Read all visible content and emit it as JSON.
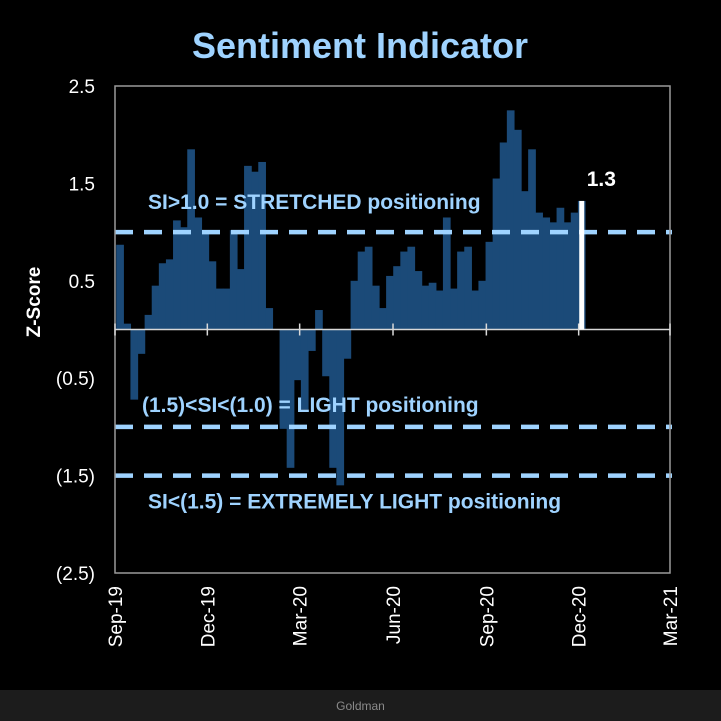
{
  "chart_data": {
    "type": "bar",
    "title": "Sentiment Indicator",
    "ylabel": "Z-Score",
    "xlabel": "",
    "ylim": [
      -2.5,
      2.5
    ],
    "yticks": [
      {
        "value": 2.5,
        "label": "2.5"
      },
      {
        "value": 1.5,
        "label": "1.5"
      },
      {
        "value": 0.5,
        "label": "0.5"
      },
      {
        "value": -0.5,
        "label": "(0.5)"
      },
      {
        "value": -1.5,
        "label": "(1.5)"
      },
      {
        "value": -2.5,
        "label": "(2.5)"
      }
    ],
    "xlim": [
      "2019-09-01",
      "2021-03-01"
    ],
    "xticks": [
      {
        "date": "2019-09-01",
        "label": "Sep-19"
      },
      {
        "date": "2019-12-01",
        "label": "Dec-19"
      },
      {
        "date": "2020-03-01",
        "label": "Mar-20"
      },
      {
        "date": "2020-06-01",
        "label": "Jun-20"
      },
      {
        "date": "2020-09-01",
        "label": "Sep-20"
      },
      {
        "date": "2020-12-01",
        "label": "Dec-20"
      },
      {
        "date": "2021-03-01",
        "label": "Mar-21"
      }
    ],
    "series": [
      {
        "color": "#1b4a78",
        "dates": [
          "2019-09-06",
          "2019-09-13",
          "2019-09-20",
          "2019-09-27",
          "2019-10-04",
          "2019-10-11",
          "2019-10-18",
          "2019-10-25",
          "2019-11-01",
          "2019-11-08",
          "2019-11-15",
          "2019-11-22",
          "2019-11-29",
          "2019-12-06",
          "2019-12-13",
          "2019-12-20",
          "2019-12-27",
          "2020-01-03",
          "2020-01-10",
          "2020-01-17",
          "2020-01-24",
          "2020-01-31",
          "2020-02-07",
          "2020-02-14",
          "2020-02-21",
          "2020-02-28",
          "2020-03-06",
          "2020-03-13",
          "2020-03-20",
          "2020-03-27",
          "2020-04-03",
          "2020-04-10",
          "2020-04-17",
          "2020-04-24",
          "2020-05-01",
          "2020-05-08",
          "2020-05-15",
          "2020-05-22",
          "2020-05-29",
          "2020-06-05",
          "2020-06-12",
          "2020-06-19",
          "2020-06-26",
          "2020-07-03",
          "2020-07-10",
          "2020-07-17",
          "2020-07-24",
          "2020-07-31",
          "2020-08-07",
          "2020-08-14",
          "2020-08-21",
          "2020-08-28",
          "2020-09-04",
          "2020-09-11",
          "2020-09-18",
          "2020-09-25",
          "2020-10-02",
          "2020-10-09",
          "2020-10-16",
          "2020-10-23",
          "2020-10-30",
          "2020-11-06",
          "2020-11-13",
          "2020-11-20",
          "2020-11-27",
          "2020-12-04"
        ],
        "values": [
          0.87,
          0.06,
          -0.72,
          -0.25,
          0.15,
          0.45,
          0.68,
          0.72,
          1.12,
          1.05,
          1.85,
          1.15,
          1.0,
          0.7,
          0.42,
          0.42,
          1.02,
          0.62,
          1.68,
          1.62,
          1.72,
          0.22,
          0.0,
          -1.02,
          -1.42,
          -0.52,
          -0.82,
          -0.22,
          0.2,
          -0.48,
          -1.42,
          -1.6,
          -0.3,
          0.5,
          0.8,
          0.85,
          0.45,
          0.22,
          0.55,
          0.65,
          0.8,
          0.85,
          0.6,
          0.45,
          0.48,
          0.4,
          1.15,
          0.42,
          0.8,
          0.85,
          0.4,
          0.5,
          0.9,
          1.55,
          1.92,
          2.25,
          2.05,
          1.42,
          1.85,
          1.2,
          1.15,
          1.1,
          1.25,
          1.1,
          1.2,
          1.32
        ]
      }
    ],
    "highlight": {
      "date": "2020-12-04",
      "value": 1.32,
      "label": "1.3",
      "color": "#ffffff"
    },
    "reference_lines": [
      {
        "value": 1.0,
        "text": "SI>1.0 = STRETCHED positioning",
        "color": "#9fd3ff"
      },
      {
        "value": -1.0,
        "text": "(1.5)<SI<(1.0) = LIGHT positioning",
        "color": "#9fd3ff"
      },
      {
        "value": -1.5,
        "text": "SI<(1.5) = EXTREMELY LIGHT positioning",
        "color": "#9fd3ff"
      }
    ],
    "grid": false
  },
  "caption": {
    "text": "Goldman"
  }
}
